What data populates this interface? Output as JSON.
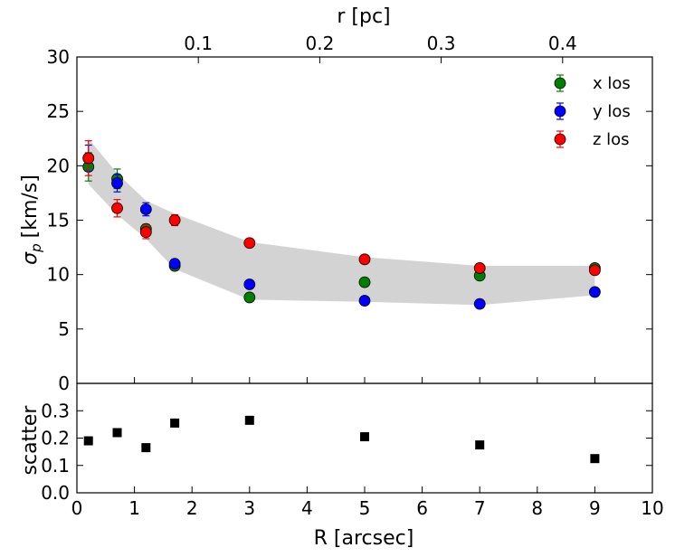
{
  "chart_data": [
    {
      "type": "scatter",
      "panel": "top",
      "xlabel": "R [arcsec]",
      "ylabel_symbol": "σ",
      "ylabel_subscript": "p",
      "ylabel_units": "[km/s]",
      "top_axis_label": "r [pc]",
      "top_axis_ticks": [
        {
          "label": "0.1",
          "R": 2.11
        },
        {
          "label": "0.2",
          "R": 4.22
        },
        {
          "label": "0.3",
          "R": 6.33
        },
        {
          "label": "0.4",
          "R": 8.44
        }
      ],
      "xlim": [
        0,
        10
      ],
      "ylim": [
        0,
        30
      ],
      "yticks": [
        0,
        5,
        10,
        15,
        20,
        25,
        30
      ],
      "xticks": [
        0,
        1,
        2,
        3,
        4,
        5,
        6,
        7,
        8,
        9,
        10
      ],
      "legend_position": "top-right",
      "band": {
        "R": [
          0.2,
          0.7,
          1.2,
          1.7,
          3.0,
          5.0,
          7.0,
          9.0
        ],
        "upper": [
          22.5,
          19.3,
          16.8,
          15.6,
          13.0,
          11.6,
          10.8,
          10.8
        ],
        "lower": [
          18.3,
          15.5,
          13.3,
          10.5,
          7.7,
          7.5,
          7.2,
          8.1
        ]
      },
      "series": [
        {
          "name": "x los",
          "color": "#008000",
          "R": [
            0.2,
            0.7,
            1.2,
            1.7,
            3.0,
            5.0,
            7.0,
            9.0
          ],
          "sigma": [
            19.9,
            18.8,
            14.2,
            10.8,
            7.9,
            9.3,
            9.9,
            10.6
          ],
          "err": [
            1.3,
            0.9,
            0.4,
            0.3,
            0.3,
            0.3,
            0.3,
            0.3
          ]
        },
        {
          "name": "y los",
          "color": "#0000ff",
          "R": [
            0.2,
            0.7,
            1.2,
            1.7,
            3.0,
            5.0,
            7.0,
            9.0
          ],
          "sigma": [
            20.7,
            18.4,
            16.0,
            11.0,
            9.1,
            7.6,
            7.3,
            8.4
          ],
          "err": [
            1.2,
            0.8,
            0.6,
            0.3,
            0.3,
            0.3,
            0.3,
            0.3
          ]
        },
        {
          "name": "z los",
          "color": "#ff0000",
          "R": [
            0.2,
            0.7,
            1.2,
            1.7,
            3.0,
            5.0,
            7.0,
            9.0
          ],
          "sigma": [
            20.7,
            16.1,
            13.9,
            15.0,
            12.9,
            11.4,
            10.6,
            10.4
          ],
          "err": [
            1.6,
            0.8,
            0.6,
            0.5,
            0.3,
            0.3,
            0.3,
            0.3
          ]
        }
      ]
    },
    {
      "type": "scatter",
      "panel": "bottom",
      "xlabel": "R [arcsec]",
      "ylabel": "scatter",
      "xlim": [
        0,
        10
      ],
      "ylim": [
        0,
        0.4
      ],
      "yticks": [
        0.0,
        0.1,
        0.2,
        0.3
      ],
      "ytick_labels": [
        "0.0",
        "0.1",
        "0.2",
        "0.3"
      ],
      "xticks": [
        0,
        1,
        2,
        3,
        4,
        5,
        6,
        7,
        8,
        9,
        10
      ],
      "series": [
        {
          "name": "scatter",
          "color": "#000000",
          "marker": "square",
          "R": [
            0.2,
            0.7,
            1.2,
            1.7,
            3.0,
            5.0,
            7.0,
            9.0
          ],
          "values": [
            0.19,
            0.22,
            0.165,
            0.255,
            0.265,
            0.205,
            0.175,
            0.125
          ]
        }
      ]
    }
  ]
}
